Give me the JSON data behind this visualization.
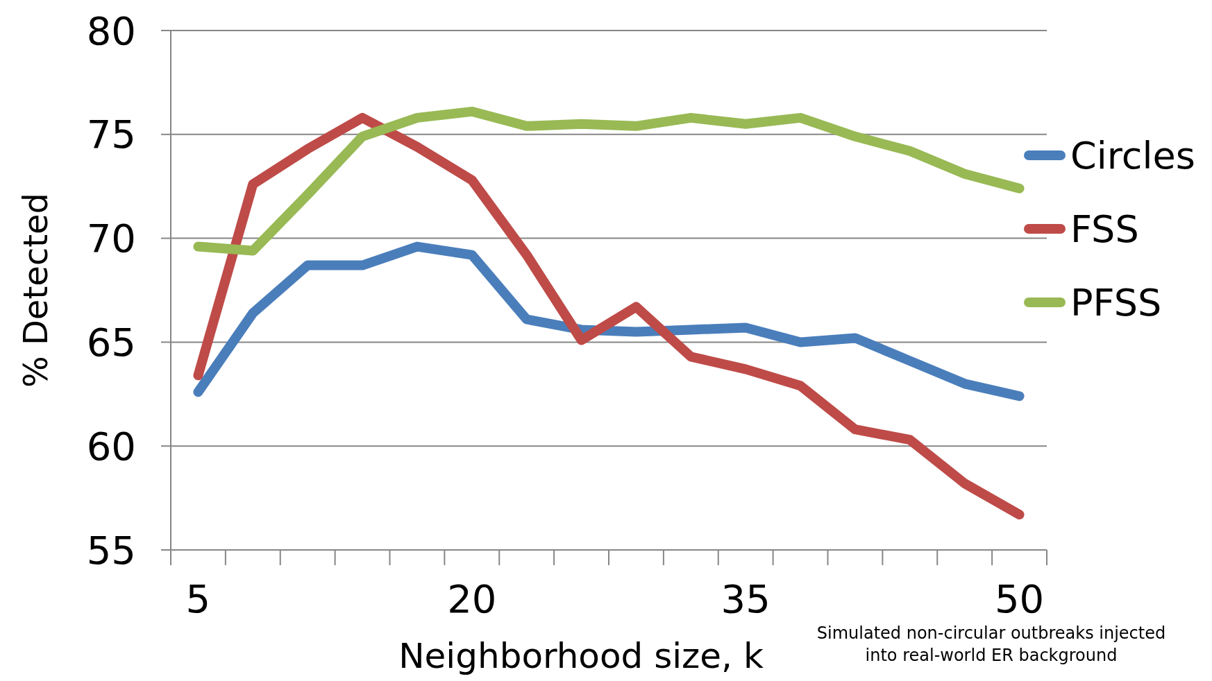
{
  "chart_data": {
    "type": "line",
    "xlabel": "Neighborhood size, k",
    "ylabel": "% Detected",
    "categories": [
      "5",
      null,
      null,
      null,
      null,
      "20",
      null,
      null,
      null,
      null,
      "35",
      null,
      null,
      null,
      null,
      "50"
    ],
    "series": [
      {
        "name": "Circles",
        "color": "#4a7ebb",
        "values": [
          62.6,
          66.4,
          68.7,
          68.7,
          69.6,
          69.2,
          66.1,
          65.6,
          65.5,
          65.6,
          65.7,
          65.0,
          65.2,
          64.1,
          63.0,
          62.4
        ]
      },
      {
        "name": "FSS",
        "color": "#be4b48",
        "values": [
          63.4,
          72.6,
          74.3,
          75.8,
          74.4,
          72.8,
          69.2,
          65.1,
          66.7,
          64.3,
          63.7,
          62.9,
          60.8,
          60.3,
          58.2,
          56.7
        ]
      },
      {
        "name": "PFSS",
        "color": "#98b954",
        "values": [
          69.6,
          69.4,
          72.1,
          74.9,
          75.8,
          76.1,
          75.4,
          75.5,
          75.4,
          75.8,
          75.5,
          75.8,
          74.9,
          74.2,
          73.1,
          72.4
        ]
      }
    ],
    "ylim": [
      55,
      80
    ],
    "yticks": [
      55,
      60,
      65,
      70,
      75,
      80
    ],
    "grid": "y",
    "legend": "right",
    "line_style": "solid",
    "marker": "none",
    "annotations": [
      "Simulated non-circular outbreaks injected\ninto real-world ER background"
    ]
  }
}
